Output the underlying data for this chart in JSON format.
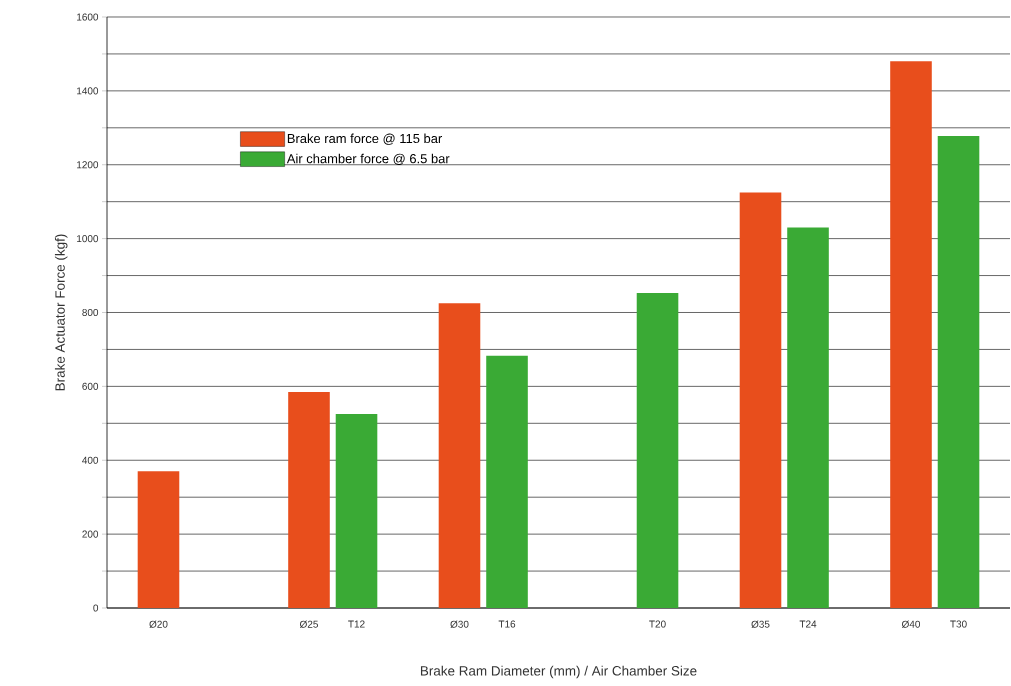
{
  "chart_data": {
    "type": "bar",
    "xlabel": "Brake Ram Diameter (mm) / Air Chamber Size",
    "ylabel": "Brake Actuator Force (kgf)",
    "categories": [
      "Ø20",
      null,
      "Ø25",
      "T12",
      "Ø30",
      "T16",
      null,
      "T20",
      "Ø35",
      "T24",
      "Ø40",
      "T30"
    ],
    "series": [
      {
        "name": "Brake ram force @ 115 bar",
        "color": "#e84e1c",
        "values": [
          370,
          null,
          585,
          null,
          825,
          null,
          null,
          null,
          1125,
          null,
          1480,
          null
        ]
      },
      {
        "name": "Air chamber force @ 6.5 bar",
        "color": "#3aaa35",
        "values": [
          null,
          null,
          null,
          525,
          null,
          683,
          null,
          853,
          null,
          1030,
          null,
          1278
        ]
      }
    ],
    "ylim": [
      0,
      1600
    ],
    "yticks": [
      0,
      {
        "value": 100,
        "label": null
      },
      200,
      {
        "value": 300,
        "label": null
      },
      400,
      {
        "value": 500,
        "label": null
      },
      600,
      {
        "value": 700,
        "label": null
      },
      800,
      {
        "value": 900,
        "label": null
      },
      1000,
      {
        "value": 1100,
        "label": null
      },
      1200,
      {
        "value": 1300,
        "label": null
      },
      1400,
      {
        "value": 1500,
        "label": null
      },
      1600
    ],
    "grid": "y",
    "legend": "top left"
  }
}
